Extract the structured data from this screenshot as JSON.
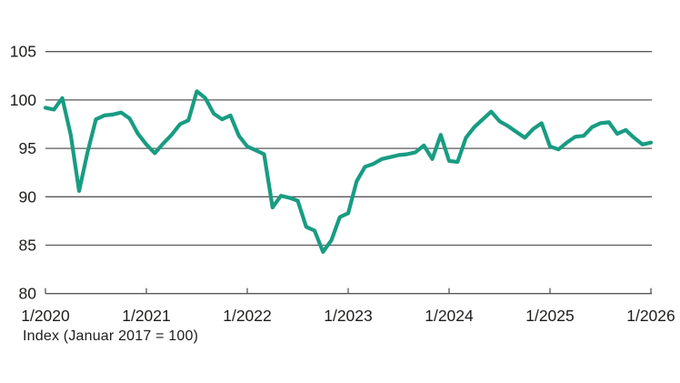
{
  "chart_data": {
    "type": "line",
    "title": "",
    "note": "Index (Januar 2017 = 100)",
    "frequency": "monthly",
    "x_start": "1/2020",
    "x_end": "1/2026",
    "x_tick_labels": [
      "1/2020",
      "1/2021",
      "1/2022",
      "1/2023",
      "1/2024",
      "1/2025",
      "1/2026"
    ],
    "y_ticks": [
      80,
      85,
      90,
      95,
      100,
      105
    ],
    "ylim": [
      80,
      105
    ],
    "grid": true,
    "legend": "none",
    "colors": {
      "line": "#189c82",
      "axis": "#58585a",
      "text": "#1d1d1b",
      "background": "#ffffff"
    },
    "series": [
      {
        "name": "Index (Januar 2017 = 100)",
        "color": "#189c82",
        "values": [
          99.2,
          99.0,
          100.2,
          96.4,
          90.6,
          94.6,
          98.0,
          98.4,
          98.5,
          98.7,
          98.1,
          96.5,
          95.4,
          94.5,
          95.5,
          96.4,
          97.5,
          97.9,
          100.9,
          100.2,
          98.6,
          98.0,
          98.4,
          96.3,
          95.2,
          94.8,
          94.4,
          88.9,
          90.1,
          89.9,
          89.6,
          86.9,
          86.5,
          84.3,
          85.5,
          87.9,
          88.3,
          91.6,
          93.1,
          93.4,
          93.9,
          94.1,
          94.3,
          94.4,
          94.6,
          95.3,
          93.9,
          96.4,
          93.7,
          93.6,
          96.1,
          97.2,
          98.0,
          98.8,
          97.8,
          97.3,
          96.7,
          96.1,
          97.0,
          97.6,
          95.2,
          94.9,
          95.6,
          96.2,
          96.3,
          97.2,
          97.6,
          97.7,
          96.5,
          96.9,
          96.1,
          95.4,
          95.6
        ]
      }
    ]
  }
}
